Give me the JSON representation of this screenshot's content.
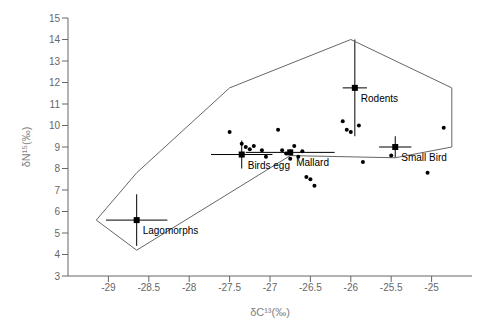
{
  "chart_data": {
    "type": "scatter",
    "xlabel": "δC¹³(‰)",
    "ylabel": "δN¹⁵(‰)",
    "xlim": [
      -29.5,
      -24.5
    ],
    "ylim": [
      3,
      15
    ],
    "xticks": [
      -29,
      -28.5,
      -28,
      -27.5,
      -27,
      -26.5,
      -26,
      -25.5,
      -25
    ],
    "yticks": [
      3,
      4,
      5,
      6,
      7,
      8,
      9,
      10,
      11,
      12,
      13,
      14,
      15
    ],
    "series": [
      {
        "type": "polygon",
        "color": "#666666",
        "x": [
          -29.15,
          -28.65,
          -27.5,
          -26.0,
          -24.75,
          -24.75,
          -25.45,
          -26.75,
          -28.65,
          -29.15
        ],
        "y": [
          5.6,
          7.8,
          11.75,
          14.0,
          11.75,
          9.0,
          8.5,
          8.6,
          4.2,
          5.6
        ]
      },
      {
        "type": "scatter",
        "color": "#000000",
        "marker": "circle",
        "x": [
          -27.5,
          -27.35,
          -27.3,
          -27.25,
          -27.2,
          -27.1,
          -27.05,
          -26.9,
          -26.85,
          -26.8,
          -26.75,
          -26.7,
          -26.65,
          -26.6,
          -26.55,
          -26.5,
          -26.45,
          -26.1,
          -26.05,
          -26.0,
          -25.9,
          -25.85,
          -25.5,
          -25.05,
          -24.85
        ],
        "y": [
          9.7,
          9.15,
          9.0,
          8.9,
          9.05,
          8.85,
          8.55,
          9.8,
          8.85,
          8.7,
          8.45,
          9.05,
          8.55,
          8.8,
          7.6,
          7.5,
          7.2,
          10.2,
          9.8,
          9.7,
          10.0,
          8.3,
          8.6,
          7.8,
          9.9
        ]
      },
      {
        "type": "errorbar",
        "color": "#000000",
        "marker": "square",
        "labels": [
          "Lagomorphs",
          "Birds egg",
          "Mallard",
          "Rodents",
          "Small Bird"
        ],
        "x": [
          -28.65,
          -27.35,
          -26.75,
          -25.95,
          -25.45
        ],
        "y": [
          5.6,
          8.65,
          8.75,
          11.75,
          9.0
        ],
        "xerr": [
          0.38,
          0.38,
          0.55,
          0.15,
          0.2
        ],
        "yerr": [
          1.2,
          0.65,
          0.15,
          2.25,
          0.5
        ]
      }
    ]
  }
}
